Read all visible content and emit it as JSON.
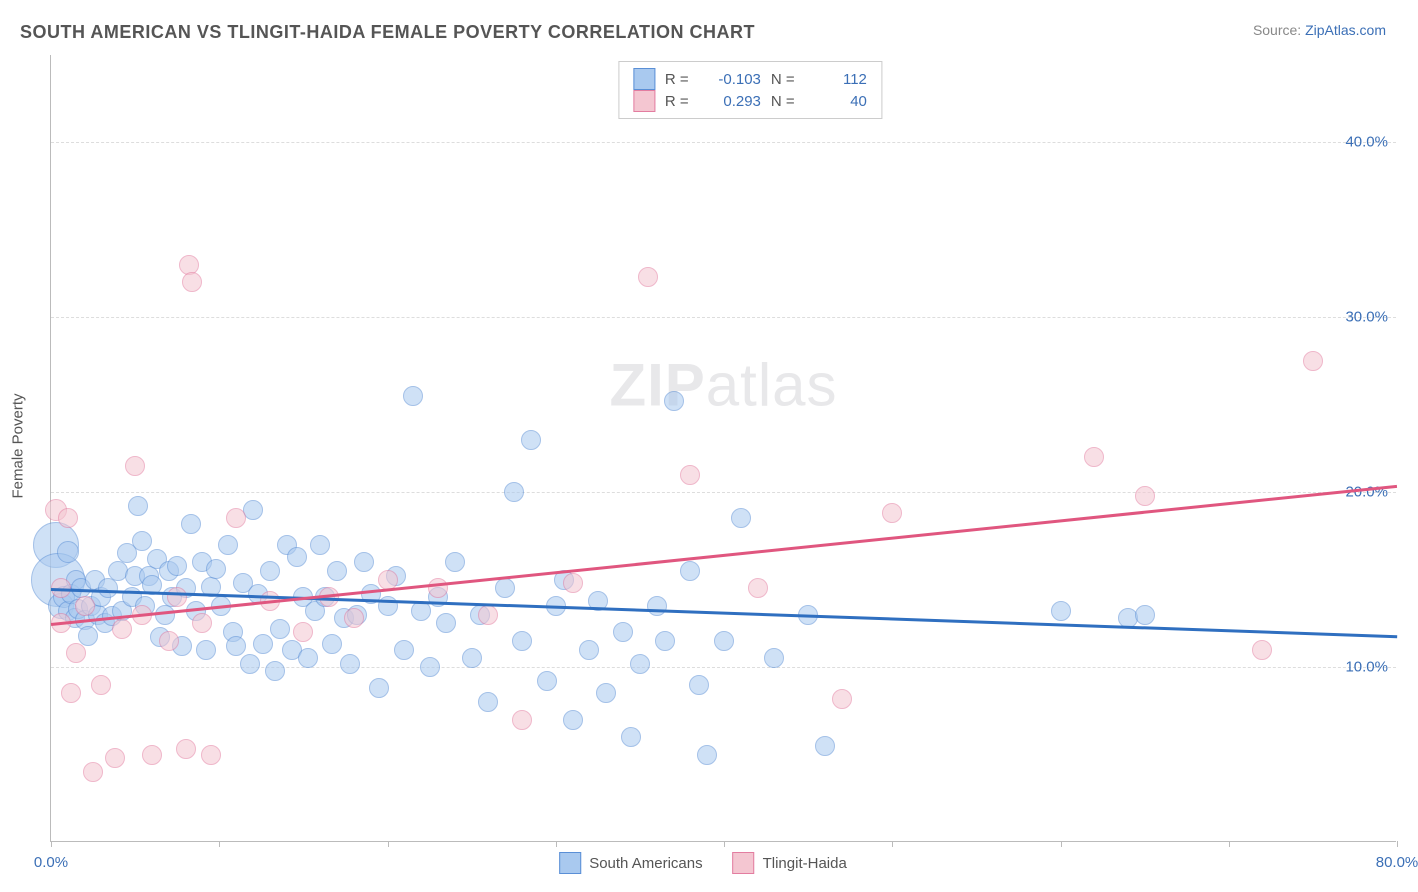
{
  "title": "SOUTH AMERICAN VS TLINGIT-HAIDA FEMALE POVERTY CORRELATION CHART",
  "source_prefix": "Source: ",
  "source_link": "ZipAtlas.com",
  "ylabel": "Female Poverty",
  "watermark_bold": "ZIP",
  "watermark_rest": "atlas",
  "chart": {
    "type": "scatter",
    "xlim": [
      0,
      80
    ],
    "ylim": [
      0,
      45
    ],
    "yticks": [
      10,
      20,
      30,
      40
    ],
    "ytick_labels": [
      "10.0%",
      "20.0%",
      "30.0%",
      "40.0%"
    ],
    "xticks": [
      0,
      10,
      20,
      30,
      40,
      50,
      60,
      70,
      80
    ],
    "xtick_labels": [
      "0.0%",
      "",
      "",
      "",
      "",
      "",
      "",
      "",
      "80.0%"
    ],
    "grid_color": "#dddddd",
    "axis_color": "#bbbbbb",
    "background_color": "#ffffff",
    "tick_label_color": "#3b6fb6",
    "ylabel_color": "#555555",
    "marker_radius": 9,
    "marker_opacity": 0.55,
    "series": [
      {
        "name": "South Americans",
        "fill": "#a9c9ef",
        "stroke": "#5a8fd6",
        "line_color": "#2f6fc0",
        "R": "-0.103",
        "N": "112",
        "trend": {
          "x1": 0,
          "y1": 14.5,
          "x2": 80,
          "y2": 11.8
        },
        "points": [
          [
            0.3,
            17.0,
            22
          ],
          [
            0.4,
            15.0,
            26
          ],
          [
            0.6,
            13.5,
            12
          ],
          [
            0.8,
            14.0,
            10
          ],
          [
            1.0,
            16.6,
            10
          ],
          [
            1.0,
            13.2,
            9
          ],
          [
            1.2,
            14.2,
            9
          ],
          [
            1.4,
            12.8,
            9
          ],
          [
            1.5,
            15.0,
            9
          ],
          [
            1.6,
            13.3,
            9
          ],
          [
            1.8,
            14.5,
            9
          ],
          [
            2.0,
            12.7,
            9
          ],
          [
            2.2,
            11.8,
            9
          ],
          [
            2.4,
            13.5,
            9
          ],
          [
            2.6,
            15.0,
            9
          ],
          [
            2.8,
            13.0,
            9
          ],
          [
            3.0,
            14.0,
            9
          ],
          [
            3.2,
            12.5,
            9
          ],
          [
            3.4,
            14.5,
            9
          ],
          [
            3.6,
            12.9,
            9
          ],
          [
            4.0,
            15.5,
            9
          ],
          [
            4.2,
            13.2,
            9
          ],
          [
            4.5,
            16.5,
            9
          ],
          [
            4.8,
            14.0,
            9
          ],
          [
            5.0,
            15.2,
            9
          ],
          [
            5.2,
            19.2,
            9
          ],
          [
            5.4,
            17.2,
            9
          ],
          [
            5.6,
            13.5,
            9
          ],
          [
            5.8,
            15.2,
            9
          ],
          [
            6.0,
            14.7,
            9
          ],
          [
            6.3,
            16.2,
            9
          ],
          [
            6.5,
            11.7,
            9
          ],
          [
            6.8,
            13.0,
            9
          ],
          [
            7.0,
            15.5,
            9
          ],
          [
            7.2,
            14.0,
            9
          ],
          [
            7.5,
            15.8,
            9
          ],
          [
            7.8,
            11.2,
            9
          ],
          [
            8.0,
            14.5,
            9
          ],
          [
            8.3,
            18.2,
            9
          ],
          [
            8.6,
            13.2,
            9
          ],
          [
            9.0,
            16.0,
            9
          ],
          [
            9.2,
            11.0,
            9
          ],
          [
            9.5,
            14.6,
            9
          ],
          [
            9.8,
            15.6,
            9
          ],
          [
            10.1,
            13.5,
            9
          ],
          [
            10.5,
            17.0,
            9
          ],
          [
            10.8,
            12.0,
            9
          ],
          [
            11.0,
            11.2,
            9
          ],
          [
            11.4,
            14.8,
            9
          ],
          [
            11.8,
            10.2,
            9
          ],
          [
            12.0,
            19.0,
            9
          ],
          [
            12.3,
            14.2,
            9
          ],
          [
            12.6,
            11.3,
            9
          ],
          [
            13.0,
            15.5,
            9
          ],
          [
            13.3,
            9.8,
            9
          ],
          [
            13.6,
            12.2,
            9
          ],
          [
            14.0,
            17.0,
            9
          ],
          [
            14.3,
            11.0,
            9
          ],
          [
            14.6,
            16.3,
            9
          ],
          [
            15.0,
            14.0,
            9
          ],
          [
            15.3,
            10.5,
            9
          ],
          [
            15.7,
            13.2,
            9
          ],
          [
            16.0,
            17.0,
            9
          ],
          [
            16.3,
            14.0,
            9
          ],
          [
            16.7,
            11.3,
            9
          ],
          [
            17.0,
            15.5,
            9
          ],
          [
            17.4,
            12.8,
            9
          ],
          [
            17.8,
            10.2,
            9
          ],
          [
            18.2,
            13.0,
            9
          ],
          [
            18.6,
            16.0,
            9
          ],
          [
            19.0,
            14.2,
            9
          ],
          [
            19.5,
            8.8,
            9
          ],
          [
            20.0,
            13.5,
            9
          ],
          [
            20.5,
            15.2,
            9
          ],
          [
            21.0,
            11.0,
            9
          ],
          [
            21.5,
            25.5,
            9
          ],
          [
            22.0,
            13.2,
            9
          ],
          [
            22.5,
            10.0,
            9
          ],
          [
            23.0,
            14.0,
            9
          ],
          [
            23.5,
            12.5,
            9
          ],
          [
            24.0,
            16.0,
            9
          ],
          [
            25.0,
            10.5,
            9
          ],
          [
            25.5,
            13.0,
            9
          ],
          [
            26.0,
            8.0,
            9
          ],
          [
            27.0,
            14.5,
            9
          ],
          [
            27.5,
            20.0,
            9
          ],
          [
            28.0,
            11.5,
            9
          ],
          [
            28.5,
            23.0,
            9
          ],
          [
            29.5,
            9.2,
            9
          ],
          [
            30.0,
            13.5,
            9
          ],
          [
            30.5,
            15.0,
            9
          ],
          [
            31.0,
            7.0,
            9
          ],
          [
            32.0,
            11.0,
            9
          ],
          [
            32.5,
            13.8,
            9
          ],
          [
            33.0,
            8.5,
            9
          ],
          [
            34.0,
            12.0,
            9
          ],
          [
            34.5,
            6.0,
            9
          ],
          [
            35.0,
            10.2,
            9
          ],
          [
            36.0,
            13.5,
            9
          ],
          [
            36.5,
            11.5,
            9
          ],
          [
            37.0,
            25.2,
            9
          ],
          [
            38.0,
            15.5,
            9
          ],
          [
            38.5,
            9.0,
            9
          ],
          [
            39.0,
            5.0,
            9
          ],
          [
            40.0,
            11.5,
            9
          ],
          [
            41.0,
            18.5,
            9
          ],
          [
            43.0,
            10.5,
            9
          ],
          [
            45.0,
            13.0,
            9
          ],
          [
            46.0,
            5.5,
            9
          ],
          [
            60.0,
            13.2,
            9
          ],
          [
            64.0,
            12.8,
            9
          ],
          [
            65.0,
            13.0,
            9
          ]
        ]
      },
      {
        "name": "Tlingit-Haida",
        "fill": "#f4c6d1",
        "stroke": "#e37da0",
        "line_color": "#e0567f",
        "R": "0.293",
        "N": "40",
        "trend": {
          "x1": 0,
          "y1": 12.5,
          "x2": 80,
          "y2": 20.4
        },
        "points": [
          [
            0.3,
            19.0,
            10
          ],
          [
            0.6,
            14.5,
            9
          ],
          [
            0.6,
            12.5,
            9
          ],
          [
            1.0,
            18.5,
            9
          ],
          [
            1.2,
            8.5,
            9
          ],
          [
            1.5,
            10.8,
            9
          ],
          [
            2.0,
            13.5,
            9
          ],
          [
            2.5,
            4.0,
            9
          ],
          [
            3.0,
            9.0,
            9
          ],
          [
            3.8,
            4.8,
            9
          ],
          [
            4.2,
            12.2,
            9
          ],
          [
            5.0,
            21.5,
            9
          ],
          [
            5.4,
            13.0,
            9
          ],
          [
            6.0,
            5.0,
            9
          ],
          [
            7.0,
            11.5,
            9
          ],
          [
            7.5,
            14.0,
            9
          ],
          [
            8.0,
            5.3,
            9
          ],
          [
            8.2,
            33.0,
            9
          ],
          [
            8.4,
            32.0,
            9
          ],
          [
            9.0,
            12.5,
            9
          ],
          [
            9.5,
            5.0,
            9
          ],
          [
            11.0,
            18.5,
            9
          ],
          [
            13.0,
            13.8,
            9
          ],
          [
            15.0,
            12.0,
            9
          ],
          [
            16.5,
            14.0,
            9
          ],
          [
            18.0,
            12.8,
            9
          ],
          [
            20.0,
            15.0,
            9
          ],
          [
            23.0,
            14.5,
            9
          ],
          [
            26.0,
            13.0,
            9
          ],
          [
            28.0,
            7.0,
            9
          ],
          [
            31.0,
            14.8,
            9
          ],
          [
            35.5,
            32.3,
            9
          ],
          [
            38.0,
            21.0,
            9
          ],
          [
            42.0,
            14.5,
            9
          ],
          [
            47.0,
            8.2,
            9
          ],
          [
            50.0,
            18.8,
            9
          ],
          [
            62.0,
            22.0,
            9
          ],
          [
            65.0,
            19.8,
            9
          ],
          [
            72.0,
            11.0,
            9
          ],
          [
            75.0,
            27.5,
            9
          ]
        ]
      }
    ],
    "legend_top": {
      "R_label": "R =",
      "N_label": "N ="
    }
  }
}
